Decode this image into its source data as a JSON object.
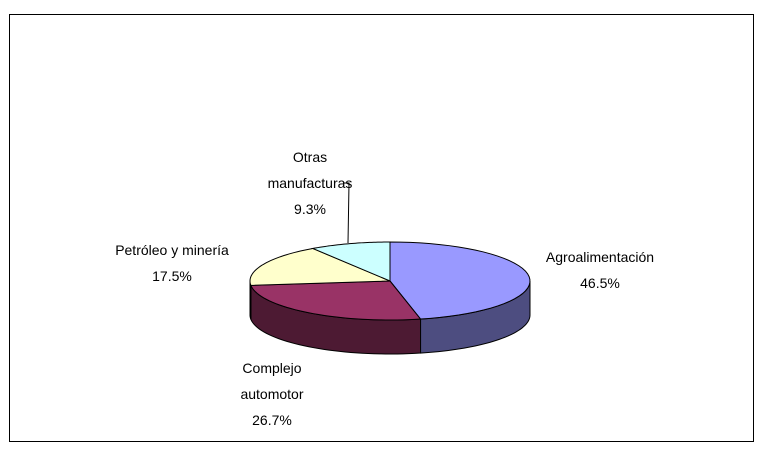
{
  "chart_data": {
    "type": "pie3d",
    "categories": [
      "Agroalimentación",
      "Complejo automotor",
      "Petróleo y minería",
      "Otras manufacturas"
    ],
    "values": [
      46.5,
      26.7,
      17.5,
      9.3
    ],
    "value_labels": [
      "46.5%",
      "26.7%",
      "17.5%",
      "9.3%"
    ],
    "colors": [
      "#9999ff",
      "#993366",
      "#ffffcc",
      "#ccffff"
    ]
  }
}
